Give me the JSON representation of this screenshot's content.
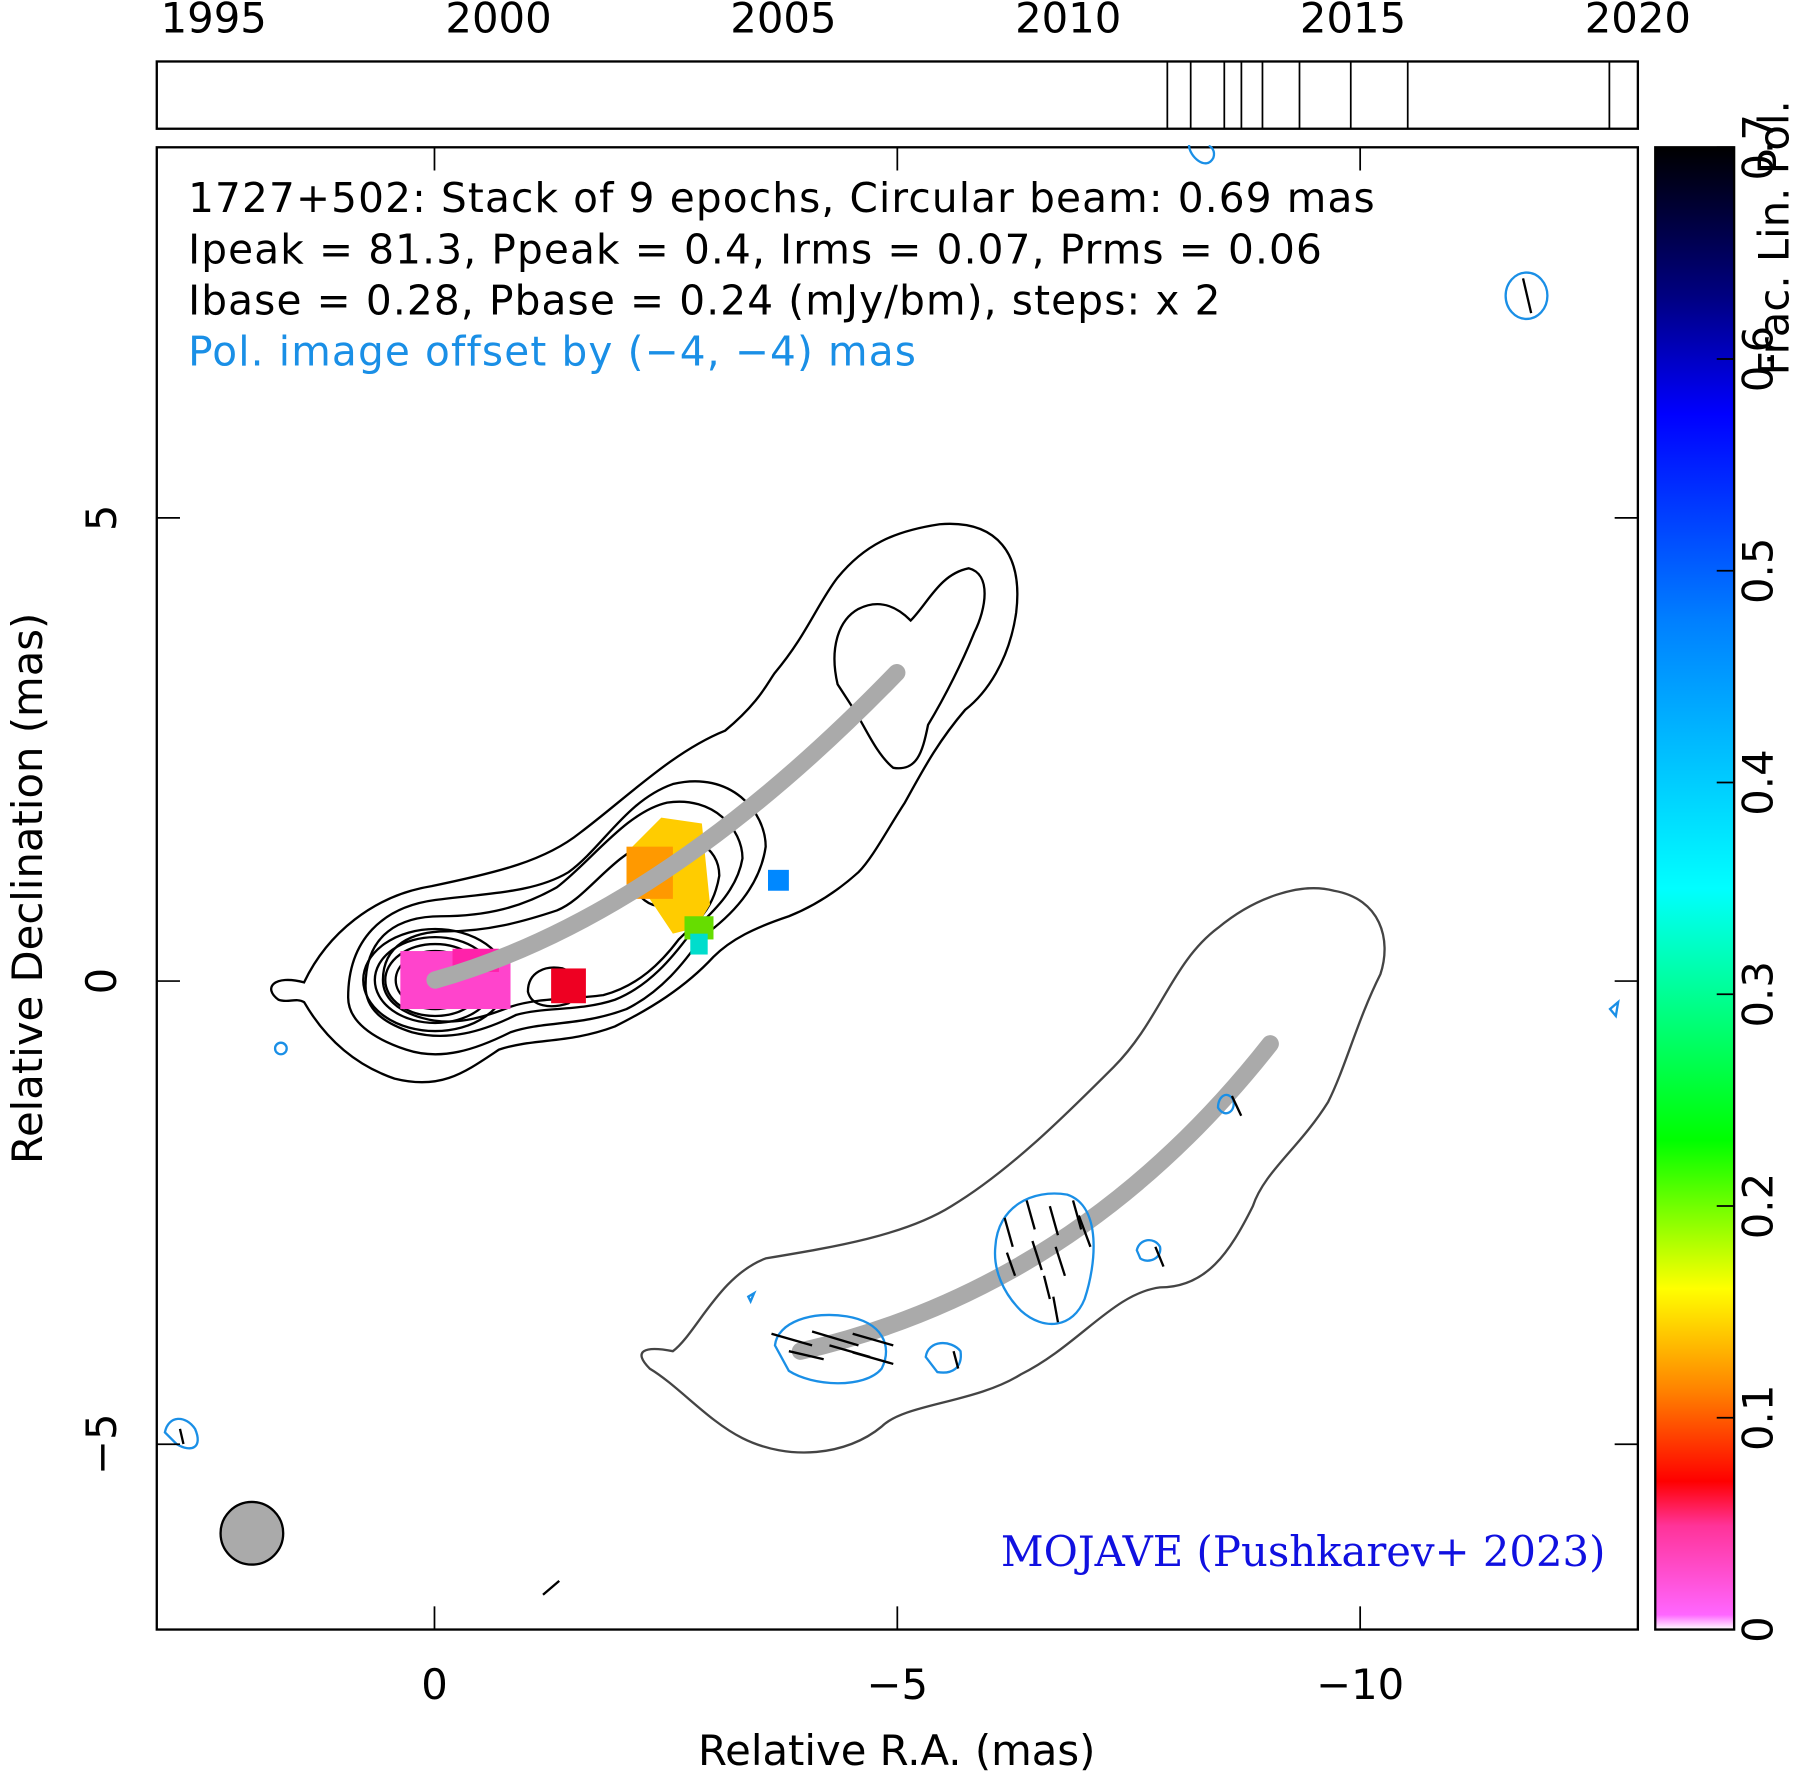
{
  "chart_data": {
    "type": "image",
    "annotations": [
      "1727+502: Stack of 9 epochs, Circular beam: 0.69 mas",
      "Ipeak = 81.3, Ppeak = 0.4, Irms = 0.07, Prms = 0.06",
      "Ibase = 0.28, Pbase = 0.24 (mJy/bm), steps: x 2",
      "Pol. image offset by (−4, −4) mas"
    ],
    "credit": "MOJAVE (Pushkarev+ 2023)",
    "x_label": "Relative R.A. (mas)",
    "y_label": "Relative Declination (mas)",
    "xlim": [
      3,
      -13
    ],
    "ylim": [
      -7,
      9
    ],
    "xticks": [
      0,
      {
        "value": -5,
        "label": "−5"
      },
      {
        "value": -10,
        "label": "−10"
      }
    ],
    "yticks": [
      {
        "value": -5,
        "label": "−5"
      },
      0,
      5
    ],
    "colorbar": {
      "label": "Frac. Lin. Pol.",
      "lim": [
        0,
        0.7
      ],
      "ticks": [
        0,
        0.1,
        0.2,
        0.3,
        0.4,
        0.5,
        0.6,
        0.7
      ]
    },
    "timeline": {
      "xlim": [
        1994,
        2020
      ],
      "xticks": [
        1995,
        2000,
        2005,
        2010,
        2015,
        2020
      ],
      "epochs": [
        2011.74,
        2012.15,
        2012.74,
        2013.04,
        2013.41,
        2014.06,
        2014.96,
        2015.96,
        2019.5
      ]
    }
  }
}
